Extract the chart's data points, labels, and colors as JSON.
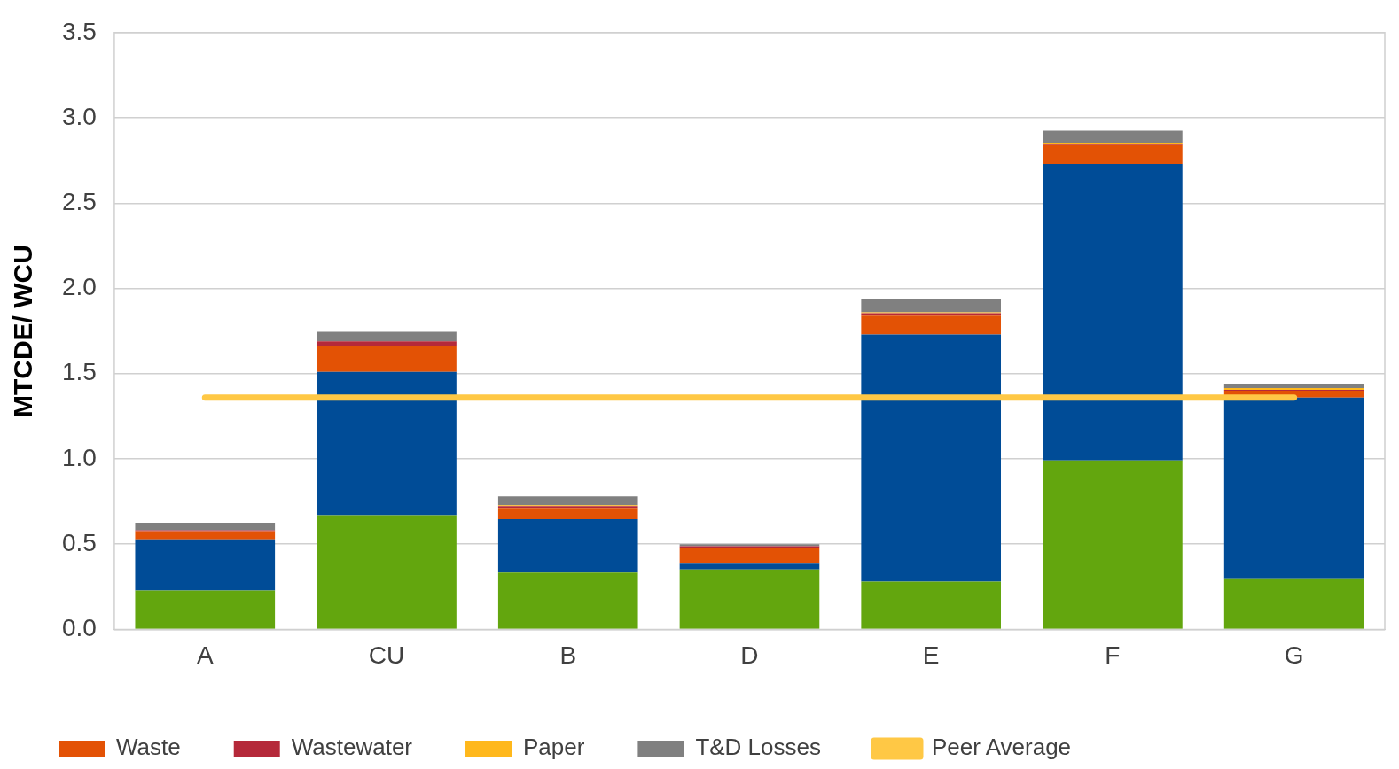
{
  "chart_data": {
    "type": "bar",
    "stacked": true,
    "ylabel": "MTCDE/ WCU",
    "categories": [
      "A",
      "CU",
      "B",
      "D",
      "E",
      "F",
      "G"
    ],
    "series": [
      {
        "color": "#63a60e",
        "values": [
          0.228,
          0.67,
          0.333,
          0.352,
          0.28,
          0.99,
          0.3
        ]
      },
      {
        "color": "#004c97",
        "values": [
          0.3,
          0.84,
          0.314,
          0.033,
          1.45,
          1.74,
          1.06
        ]
      },
      {
        "name": "Waste",
        "color": "#e35205",
        "values": [
          0.048,
          0.155,
          0.066,
          0.095,
          0.11,
          0.11,
          0.04
        ]
      },
      {
        "name": "Wastewater",
        "color": "#b5293a",
        "values": [
          0.005,
          0.025,
          0.01,
          0.008,
          0.015,
          0.01,
          0.005
        ]
      },
      {
        "name": "Paper",
        "color": "#ffb81c",
        "values": [
          0,
          0,
          0.005,
          0,
          0.005,
          0.005,
          0.01
        ]
      },
      {
        "name": "T&D Losses",
        "color": "#808080",
        "values": [
          0.045,
          0.055,
          0.052,
          0.012,
          0.075,
          0.07,
          0.025
        ]
      },
      {
        "name": "Peer Average",
        "type": "line",
        "color": "#ffc845",
        "values": [
          1.36,
          1.36,
          1.36,
          1.36,
          1.36,
          1.36,
          1.36
        ]
      }
    ],
    "ylim": [
      0,
      3.5
    ],
    "yticks": [
      {
        "value": 0,
        "label": "0.0"
      },
      {
        "value": 0.5,
        "label": "0.5"
      },
      {
        "value": 1,
        "label": "1.0"
      },
      {
        "value": 1.5,
        "label": "1.5"
      },
      {
        "value": 2,
        "label": "2.0"
      },
      {
        "value": 2.5,
        "label": "2.5"
      },
      {
        "value": 3,
        "label": "3.0"
      },
      {
        "value": 3.5,
        "label": "3.5"
      }
    ],
    "grid": "y",
    "legend": "bottom",
    "marker": "none",
    "line_style": "solid"
  }
}
